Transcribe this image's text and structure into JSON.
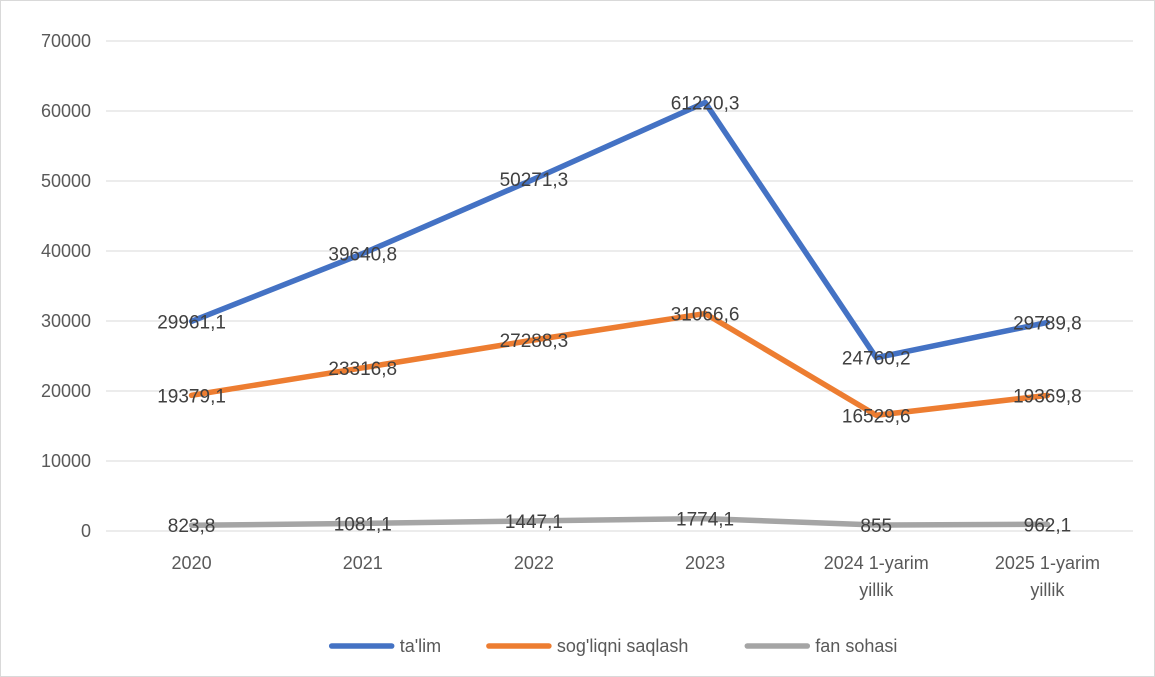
{
  "chart_data": {
    "type": "line",
    "categories": [
      [
        "2020"
      ],
      [
        "2021"
      ],
      [
        "2022"
      ],
      [
        "2023"
      ],
      [
        "2024 1-yarim",
        "yillik"
      ],
      [
        "2025 1-yarim",
        "yillik"
      ]
    ],
    "series": [
      {
        "name": "ta'lim",
        "color": "#4472C4",
        "values": [
          29961.1,
          39640.8,
          50271.3,
          61220.3,
          24760.2,
          29789.8
        ],
        "labels": [
          "29961,1",
          "39640,8",
          "50271,3",
          "61220,3",
          "24760,2",
          "29789,8"
        ]
      },
      {
        "name": "sog'liqni saqlash",
        "color": "#ED7D31",
        "values": [
          19379.1,
          23316.8,
          27288.3,
          31066.6,
          16529.6,
          19369.8
        ],
        "labels": [
          "19379,1",
          "23316,8",
          "27288,3",
          "31066,6",
          "16529,6",
          "19369,8"
        ]
      },
      {
        "name": "fan sohasi",
        "color": "#A5A5A5",
        "values": [
          823.8,
          1081.1,
          1447.1,
          1774.1,
          855,
          962.1
        ],
        "labels": [
          "823,8",
          "1081,1",
          "1447,1",
          "1774,1",
          "855",
          "962,1"
        ]
      }
    ],
    "yticks": [
      "0",
      "10000",
      "20000",
      "30000",
      "40000",
      "50000",
      "60000",
      "70000"
    ],
    "ylim": [
      0,
      70000
    ],
    "grid": true,
    "legend": "bottom"
  }
}
